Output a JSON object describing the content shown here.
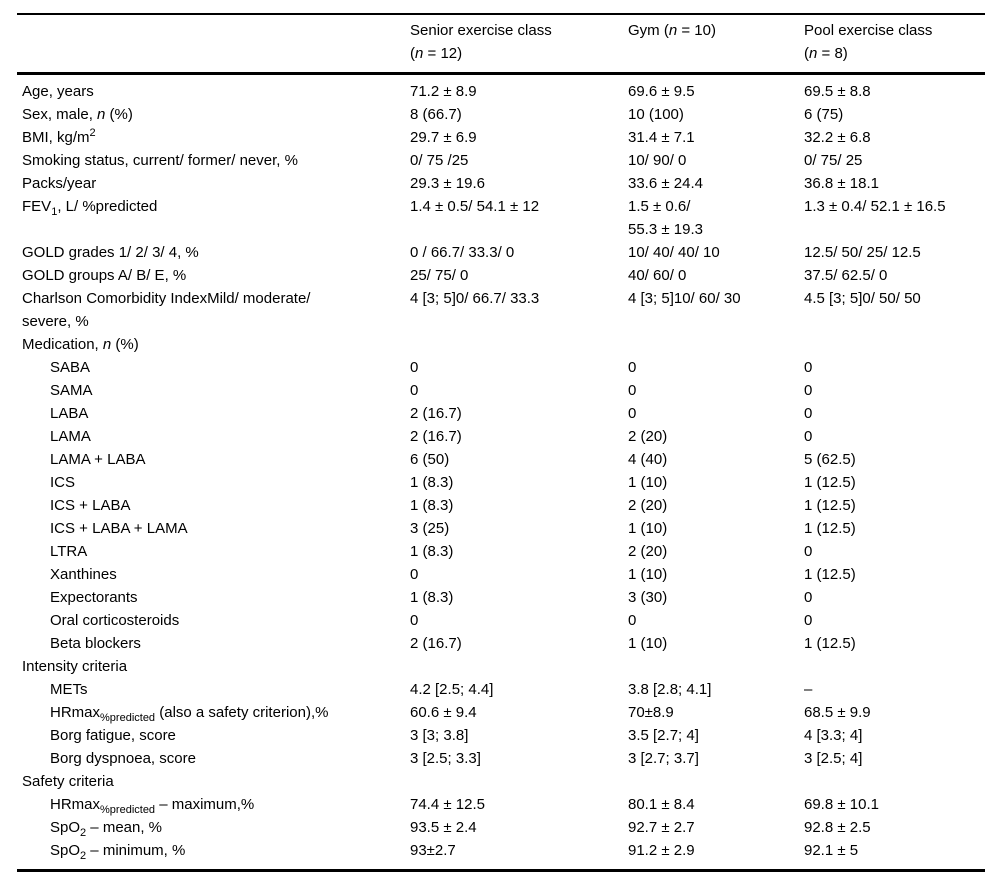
{
  "colors": {
    "background": "#ffffff",
    "text": "#000000",
    "rule": "#000000"
  },
  "table": {
    "columns": [
      {
        "label_html": ""
      },
      {
        "label_html": "Senior exercise class\n(<i>n</i> = 12)"
      },
      {
        "label_html": "Gym (<i>n</i> = 10)"
      },
      {
        "label_html": "Pool exercise class\n(<i>n</i> = 8)"
      }
    ],
    "rows": [
      {
        "label_html": "Age, years",
        "indent": 0,
        "section": false,
        "values": [
          "71.2 ± 8.9",
          "69.6 ± 9.5",
          "69.5 ± 8.8"
        ]
      },
      {
        "label_html": "Sex, male, <i>n</i> (%)",
        "indent": 0,
        "section": false,
        "values": [
          "8 (66.7)",
          "10 (100)",
          "6 (75)"
        ]
      },
      {
        "label_html": "BMI, kg/m<sup>2</sup>",
        "indent": 0,
        "section": false,
        "values": [
          "29.7 ± 6.9",
          "31.4 ± 7.1",
          "32.2 ± 6.8"
        ]
      },
      {
        "label_html": "Smoking status, current/ former/ never, %",
        "indent": 0,
        "section": false,
        "values": [
          "0/ 75 /25",
          "10/ 90/ 0",
          "0/ 75/ 25"
        ]
      },
      {
        "label_html": "Packs/year",
        "indent": 0,
        "section": false,
        "values": [
          "29.3 ± 19.6",
          "33.6 ± 24.4",
          "36.8 ± 18.1"
        ]
      },
      {
        "label_html": "FEV<sub>1</sub>, L/ %predicted",
        "indent": 0,
        "section": false,
        "values": [
          "1.4 ± 0.5/ 54.1 ± 12",
          "1.5 ± 0.6/\n55.3 ± 19.3",
          "1.3 ± 0.4/ 52.1 ± 16.5"
        ]
      },
      {
        "label_html": "GOLD grades 1/ 2/ 3/ 4, %",
        "indent": 0,
        "section": false,
        "values": [
          "0 / 66.7/ 33.3/ 0",
          "10/ 40/ 40/ 10",
          "12.5/ 50/ 25/ 12.5"
        ]
      },
      {
        "label_html": "GOLD groups A/ B/ E, %",
        "indent": 0,
        "section": false,
        "values": [
          "25/ 75/ 0",
          "40/ 60/ 0",
          "37.5/ 62.5/ 0"
        ]
      },
      {
        "label_html": "Charlson Comorbidity IndexMild/ moderate/\nsevere, %",
        "indent": 0,
        "section": false,
        "values": [
          "4 [3; 5]0/ 66.7/ 33.3",
          "4 [3; 5]10/ 60/ 30",
          "4.5 [3; 5]0/ 50/ 50"
        ]
      },
      {
        "label_html": "Medication, <i>n</i> (%)",
        "indent": 0,
        "section": true,
        "values": [
          "",
          "",
          ""
        ]
      },
      {
        "label_html": "SABA",
        "indent": 1,
        "section": false,
        "values": [
          "0",
          "0",
          "0"
        ]
      },
      {
        "label_html": "SAMA",
        "indent": 1,
        "section": false,
        "values": [
          "0",
          "0",
          "0"
        ]
      },
      {
        "label_html": "LABA",
        "indent": 1,
        "section": false,
        "values": [
          "2 (16.7)",
          "0",
          "0"
        ]
      },
      {
        "label_html": "LAMA",
        "indent": 1,
        "section": false,
        "values": [
          "2 (16.7)",
          "2 (20)",
          "0"
        ]
      },
      {
        "label_html": "LAMA + LABA",
        "indent": 1,
        "section": false,
        "values": [
          "6 (50)",
          "4 (40)",
          "5 (62.5)"
        ]
      },
      {
        "label_html": "ICS",
        "indent": 1,
        "section": false,
        "values": [
          "1 (8.3)",
          "1 (10)",
          "1 (12.5)"
        ]
      },
      {
        "label_html": "ICS + LABA",
        "indent": 1,
        "section": false,
        "values": [
          "1 (8.3)",
          "2 (20)",
          "1 (12.5)"
        ]
      },
      {
        "label_html": "ICS + LABA + LAMA",
        "indent": 1,
        "section": false,
        "values": [
          "3 (25)",
          "1 (10)",
          "1 (12.5)"
        ]
      },
      {
        "label_html": "LTRA",
        "indent": 1,
        "section": false,
        "values": [
          "1 (8.3)",
          "2 (20)",
          "0"
        ]
      },
      {
        "label_html": "Xanthines",
        "indent": 1,
        "section": false,
        "values": [
          "0",
          "1 (10)",
          "1 (12.5)"
        ]
      },
      {
        "label_html": "Expectorants",
        "indent": 1,
        "section": false,
        "values": [
          "1 (8.3)",
          "3 (30)",
          "0"
        ]
      },
      {
        "label_html": "Oral corticosteroids",
        "indent": 1,
        "section": false,
        "values": [
          "0",
          "0",
          "0"
        ]
      },
      {
        "label_html": "Beta blockers",
        "indent": 1,
        "section": false,
        "values": [
          "2 (16.7)",
          "1 (10)",
          "1 (12.5)"
        ]
      },
      {
        "label_html": "Intensity criteria",
        "indent": 0,
        "section": true,
        "values": [
          "",
          "",
          ""
        ]
      },
      {
        "label_html": "METs",
        "indent": 1,
        "section": false,
        "values": [
          "4.2 [2.5; 4.4]",
          "3.8 [2.8; 4.1]",
          "–"
        ]
      },
      {
        "label_html": "HRmax<sub>%predicted</sub> (also a safety criterion),%",
        "indent": 1,
        "section": false,
        "values": [
          "60.6 ± 9.4",
          "70±8.9",
          "68.5 ± 9.9"
        ]
      },
      {
        "label_html": "Borg fatigue, score",
        "indent": 1,
        "section": false,
        "values": [
          "3 [3; 3.8]",
          "3.5 [2.7; 4]",
          "4 [3.3; 4]"
        ]
      },
      {
        "label_html": "Borg dyspnoea, score",
        "indent": 1,
        "section": false,
        "values": [
          "3 [2.5; 3.3]",
          "3 [2.7; 3.7]",
          "3 [2.5; 4]"
        ]
      },
      {
        "label_html": "Safety criteria",
        "indent": 0,
        "section": true,
        "values": [
          "",
          "",
          ""
        ]
      },
      {
        "label_html": "HRmax<sub>%predicted</sub> – maximum,%",
        "indent": 1,
        "section": false,
        "values": [
          "74.4 ± 12.5",
          "80.1 ± 8.4",
          "69.8 ± 10.1"
        ]
      },
      {
        "label_html": "SpO<sub>2</sub> – mean, %",
        "indent": 1,
        "section": false,
        "values": [
          "93.5 ± 2.4",
          "92.7 ± 2.7",
          "92.8 ± 2.5"
        ]
      },
      {
        "label_html": "SpO<sub>2</sub> – minimum, %",
        "indent": 1,
        "section": false,
        "values": [
          "93±2.7",
          "91.2 ± 2.9",
          "92.1 ± 5"
        ]
      }
    ]
  }
}
